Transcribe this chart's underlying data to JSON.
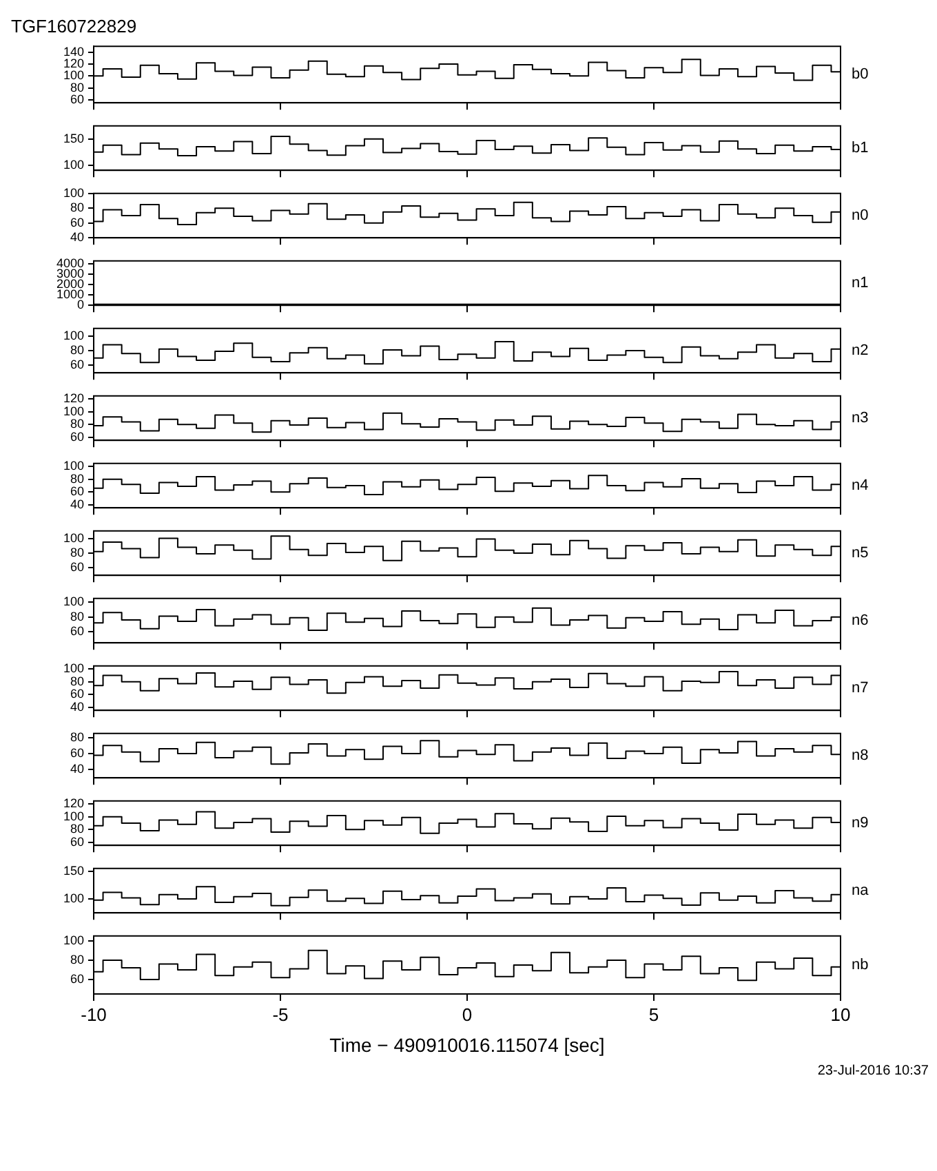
{
  "chart_data": [
    {
      "type": "step",
      "title": "TGF160722829",
      "xlim": [
        -10,
        10
      ],
      "xticks": [
        -10,
        -5,
        0,
        5,
        10
      ],
      "ylim": [
        55,
        150
      ],
      "yticks": [
        60,
        80,
        100,
        120,
        140
      ],
      "tick_labels": "y",
      "x": [
        -10,
        -9.5,
        -9,
        -8.5,
        -8,
        -7.5,
        -7,
        -6.5,
        -6,
        -5.5,
        -5,
        -4.5,
        -4,
        -3.5,
        -3,
        -2.5,
        -2,
        -1.5,
        -1,
        -0.5,
        0,
        0.5,
        1,
        1.5,
        2,
        2.5,
        3,
        3.5,
        4,
        4.5,
        5,
        5.5,
        6,
        6.5,
        7,
        7.5,
        8,
        8.5,
        9,
        9.5,
        10
      ],
      "series": [
        {
          "name": "b0",
          "color": "#000000",
          "values": [
            100,
            112,
            98,
            118,
            104,
            95,
            122,
            108,
            101,
            115,
            97,
            110,
            125,
            103,
            99,
            117,
            106,
            94,
            113,
            120,
            102,
            108,
            96,
            119,
            111,
            104,
            100,
            123,
            109,
            97,
            114,
            106,
            128,
            101,
            112,
            99,
            116,
            105,
            93,
            118,
            107
          ]
        }
      ]
    },
    {
      "type": "step",
      "xlim": [
        -10,
        10
      ],
      "xticks": [
        -10,
        -5,
        0,
        5,
        10
      ],
      "ylim": [
        90,
        175
      ],
      "yticks": [
        100,
        150
      ],
      "tick_labels": "y",
      "x": [
        -10,
        -9.5,
        -9,
        -8.5,
        -8,
        -7.5,
        -7,
        -6.5,
        -6,
        -5.5,
        -5,
        -4.5,
        -4,
        -3.5,
        -3,
        -2.5,
        -2,
        -1.5,
        -1,
        -0.5,
        0,
        0.5,
        1,
        1.5,
        2,
        2.5,
        3,
        3.5,
        4,
        4.5,
        5,
        5.5,
        6,
        6.5,
        7,
        7.5,
        8,
        8.5,
        9,
        9.5,
        10
      ],
      "series": [
        {
          "name": "b1",
          "color": "#000000",
          "values": [
            125,
            138,
            120,
            142,
            131,
            118,
            135,
            127,
            145,
            122,
            155,
            140,
            128,
            119,
            137,
            150,
            124,
            132,
            141,
            126,
            121,
            147,
            130,
            136,
            123,
            139,
            128,
            152,
            134,
            120,
            143,
            129,
            137,
            125,
            146,
            131,
            122,
            138,
            127,
            135,
            130
          ]
        }
      ]
    },
    {
      "type": "step",
      "xlim": [
        -10,
        10
      ],
      "xticks": [
        -10,
        -5,
        0,
        5,
        10
      ],
      "ylim": [
        40,
        100
      ],
      "yticks": [
        40,
        60,
        80,
        100
      ],
      "tick_labels": "y",
      "x": [
        -10,
        -9.5,
        -9,
        -8.5,
        -8,
        -7.5,
        -7,
        -6.5,
        -6,
        -5.5,
        -5,
        -4.5,
        -4,
        -3.5,
        -3,
        -2.5,
        -2,
        -1.5,
        -1,
        -0.5,
        0,
        0.5,
        1,
        1.5,
        2,
        2.5,
        3,
        3.5,
        4,
        4.5,
        5,
        5.5,
        6,
        6.5,
        7,
        7.5,
        8,
        8.5,
        9,
        9.5,
        10
      ],
      "series": [
        {
          "name": "n0",
          "color": "#000000",
          "values": [
            62,
            78,
            70,
            85,
            66,
            58,
            74,
            80,
            69,
            63,
            77,
            72,
            86,
            65,
            71,
            60,
            75,
            83,
            68,
            73,
            64,
            79,
            70,
            88,
            67,
            62,
            76,
            71,
            82,
            66,
            74,
            69,
            78,
            63,
            85,
            72,
            67,
            80,
            70,
            61,
            75
          ]
        }
      ]
    },
    {
      "type": "step",
      "xlim": [
        -10,
        10
      ],
      "xticks": [
        -10,
        -5,
        0,
        5,
        10
      ],
      "ylim": [
        0,
        4300
      ],
      "yticks": [
        0,
        1000,
        2000,
        3000,
        4000
      ],
      "tick_labels": "y",
      "x": [
        -10,
        -9.5,
        -9,
        -8.5,
        -8,
        -7.5,
        -7,
        -6.5,
        -6,
        -5.5,
        -5,
        -4.5,
        -4,
        -3.5,
        -3,
        -2.5,
        -2,
        -1.5,
        -1,
        -0.5,
        0,
        0.5,
        1,
        1.5,
        2,
        2.5,
        3,
        3.5,
        4,
        4.5,
        5,
        5.5,
        6,
        6.5,
        7,
        7.5,
        8,
        8.5,
        9,
        9.5,
        10
      ],
      "series": [
        {
          "name": "n1",
          "color": "#000000",
          "values": [
            100,
            100,
            100,
            100,
            100,
            100,
            100,
            100,
            100,
            100,
            100,
            100,
            100,
            100,
            100,
            100,
            100,
            100,
            100,
            100,
            100,
            100,
            100,
            100,
            100,
            100,
            100,
            100,
            100,
            100,
            100,
            100,
            100,
            100,
            100,
            100,
            100,
            100,
            100,
            100,
            100
          ]
        }
      ]
    },
    {
      "type": "step",
      "xlim": [
        -10,
        10
      ],
      "xticks": [
        -10,
        -5,
        0,
        5,
        10
      ],
      "ylim": [
        50,
        110
      ],
      "yticks": [
        60,
        80,
        100
      ],
      "tick_labels": "y",
      "x": [
        -10,
        -9.5,
        -9,
        -8.5,
        -8,
        -7.5,
        -7,
        -6.5,
        -6,
        -5.5,
        -5,
        -4.5,
        -4,
        -3.5,
        -3,
        -2.5,
        -2,
        -1.5,
        -1,
        -0.5,
        0,
        0.5,
        1,
        1.5,
        2,
        2.5,
        3,
        3.5,
        4,
        4.5,
        5,
        5.5,
        6,
        6.5,
        7,
        7.5,
        8,
        8.5,
        9,
        9.5,
        10
      ],
      "series": [
        {
          "name": "n2",
          "color": "#000000",
          "values": [
            70,
            88,
            76,
            64,
            82,
            72,
            67,
            79,
            90,
            71,
            65,
            77,
            84,
            69,
            74,
            62,
            81,
            73,
            86,
            68,
            75,
            70,
            92,
            66,
            78,
            72,
            83,
            67,
            74,
            80,
            71,
            64,
            85,
            73,
            69,
            78,
            88,
            70,
            76,
            65,
            82
          ]
        }
      ]
    },
    {
      "type": "step",
      "xlim": [
        -10,
        10
      ],
      "xticks": [
        -10,
        -5,
        0,
        5,
        10
      ],
      "ylim": [
        55,
        125
      ],
      "yticks": [
        60,
        80,
        100,
        120
      ],
      "tick_labels": "y",
      "x": [
        -10,
        -9.5,
        -9,
        -8.5,
        -8,
        -7.5,
        -7,
        -6.5,
        -6,
        -5.5,
        -5,
        -4.5,
        -4,
        -3.5,
        -3,
        -2.5,
        -2,
        -1.5,
        -1,
        -0.5,
        0,
        0.5,
        1,
        1.5,
        2,
        2.5,
        3,
        3.5,
        4,
        4.5,
        5,
        5.5,
        6,
        6.5,
        7,
        7.5,
        8,
        8.5,
        9,
        9.5,
        10
      ],
      "series": [
        {
          "name": "n3",
          "color": "#000000",
          "values": [
            78,
            92,
            84,
            70,
            88,
            80,
            74,
            95,
            82,
            68,
            86,
            79,
            90,
            75,
            83,
            72,
            98,
            81,
            76,
            89,
            84,
            71,
            87,
            79,
            93,
            73,
            85,
            80,
            77,
            91,
            82,
            69,
            88,
            84,
            74,
            96,
            80,
            78,
            86,
            72,
            84
          ]
        }
      ]
    },
    {
      "type": "step",
      "xlim": [
        -10,
        10
      ],
      "xticks": [
        -10,
        -5,
        0,
        5,
        10
      ],
      "ylim": [
        35,
        105
      ],
      "yticks": [
        40,
        60,
        80,
        100
      ],
      "tick_labels": "y",
      "x": [
        -10,
        -9.5,
        -9,
        -8.5,
        -8,
        -7.5,
        -7,
        -6.5,
        -6,
        -5.5,
        -5,
        -4.5,
        -4,
        -3.5,
        -3,
        -2.5,
        -2,
        -1.5,
        -1,
        -0.5,
        0,
        0.5,
        1,
        1.5,
        2,
        2.5,
        3,
        3.5,
        4,
        4.5,
        5,
        5.5,
        6,
        6.5,
        7,
        7.5,
        8,
        8.5,
        9,
        9.5,
        10
      ],
      "series": [
        {
          "name": "n4",
          "color": "#000000",
          "values": [
            66,
            80,
            72,
            58,
            75,
            69,
            84,
            63,
            71,
            77,
            60,
            73,
            82,
            67,
            70,
            56,
            76,
            68,
            79,
            64,
            72,
            83,
            61,
            74,
            69,
            78,
            65,
            86,
            70,
            62,
            75,
            68,
            81,
            66,
            73,
            59,
            77,
            70,
            84,
            63,
            72
          ]
        }
      ]
    },
    {
      "type": "step",
      "xlim": [
        -10,
        10
      ],
      "xticks": [
        -10,
        -5,
        0,
        5,
        10
      ],
      "ylim": [
        50,
        110
      ],
      "yticks": [
        60,
        80,
        100
      ],
      "tick_labels": "y",
      "x": [
        -10,
        -9.5,
        -9,
        -8.5,
        -8,
        -7.5,
        -7,
        -6.5,
        -6,
        -5.5,
        -5,
        -4.5,
        -4,
        -3.5,
        -3,
        -2.5,
        -2,
        -1.5,
        -1,
        -0.5,
        0,
        0.5,
        1,
        1.5,
        2,
        2.5,
        3,
        3.5,
        4,
        4.5,
        5,
        5.5,
        6,
        6.5,
        7,
        7.5,
        8,
        8.5,
        9,
        9.5,
        10
      ],
      "series": [
        {
          "name": "n5",
          "color": "#000000",
          "values": [
            82,
            95,
            86,
            74,
            100,
            88,
            79,
            91,
            84,
            72,
            103,
            85,
            77,
            93,
            81,
            89,
            70,
            96,
            83,
            87,
            75,
            99,
            84,
            80,
            92,
            78,
            97,
            86,
            73,
            90,
            84,
            94,
            79,
            88,
            82,
            98,
            76,
            91,
            85,
            77,
            89
          ]
        }
      ]
    },
    {
      "type": "step",
      "xlim": [
        -10,
        10
      ],
      "xticks": [
        -10,
        -5,
        0,
        5,
        10
      ],
      "ylim": [
        45,
        105
      ],
      "yticks": [
        60,
        80,
        100
      ],
      "tick_labels": "y",
      "x": [
        -10,
        -9.5,
        -9,
        -8.5,
        -8,
        -7.5,
        -7,
        -6.5,
        -6,
        -5.5,
        -5,
        -4.5,
        -4,
        -3.5,
        -3,
        -2.5,
        -2,
        -1.5,
        -1,
        -0.5,
        0,
        0.5,
        1,
        1.5,
        2,
        2.5,
        3,
        3.5,
        4,
        4.5,
        5,
        5.5,
        6,
        6.5,
        7,
        7.5,
        8,
        8.5,
        9,
        9.5,
        10
      ],
      "series": [
        {
          "name": "n6",
          "color": "#000000",
          "values": [
            72,
            86,
            76,
            64,
            81,
            74,
            90,
            68,
            77,
            83,
            70,
            79,
            62,
            85,
            73,
            78,
            67,
            88,
            75,
            71,
            84,
            66,
            80,
            73,
            92,
            69,
            76,
            82,
            65,
            79,
            74,
            87,
            70,
            77,
            63,
            83,
            72,
            89,
            68,
            75,
            80
          ]
        }
      ]
    },
    {
      "type": "step",
      "xlim": [
        -10,
        10
      ],
      "xticks": [
        -10,
        -5,
        0,
        5,
        10
      ],
      "ylim": [
        35,
        105
      ],
      "yticks": [
        40,
        60,
        80,
        100
      ],
      "tick_labels": "y",
      "x": [
        -10,
        -9.5,
        -9,
        -8.5,
        -8,
        -7.5,
        -7,
        -6.5,
        -6,
        -5.5,
        -5,
        -4.5,
        -4,
        -3.5,
        -3,
        -2.5,
        -2,
        -1.5,
        -1,
        -0.5,
        0,
        0.5,
        1,
        1.5,
        2,
        2.5,
        3,
        3.5,
        4,
        4.5,
        5,
        5.5,
        6,
        6.5,
        7,
        7.5,
        8,
        8.5,
        9,
        9.5,
        10
      ],
      "series": [
        {
          "name": "n7",
          "color": "#000000",
          "values": [
            74,
            90,
            80,
            66,
            85,
            77,
            94,
            72,
            81,
            68,
            87,
            76,
            83,
            62,
            79,
            88,
            73,
            82,
            70,
            91,
            78,
            75,
            86,
            69,
            80,
            84,
            71,
            93,
            77,
            73,
            88,
            66,
            81,
            79,
            96,
            74,
            83,
            70,
            87,
            76,
            90
          ]
        }
      ]
    },
    {
      "type": "step",
      "xlim": [
        -10,
        10
      ],
      "xticks": [
        -10,
        -5,
        0,
        5,
        10
      ],
      "ylim": [
        30,
        85
      ],
      "yticks": [
        40,
        60,
        80
      ],
      "tick_labels": "y",
      "x": [
        -10,
        -9.5,
        -9,
        -8.5,
        -8,
        -7.5,
        -7,
        -6.5,
        -6,
        -5.5,
        -5,
        -4.5,
        -4,
        -3.5,
        -3,
        -2.5,
        -2,
        -1.5,
        -1,
        -0.5,
        0,
        0.5,
        1,
        1.5,
        2,
        2.5,
        3,
        3.5,
        4,
        4.5,
        5,
        5.5,
        6,
        6.5,
        7,
        7.5,
        8,
        8.5,
        9,
        9.5,
        10
      ],
      "series": [
        {
          "name": "n8",
          "color": "#000000",
          "values": [
            58,
            70,
            62,
            50,
            66,
            60,
            74,
            55,
            63,
            68,
            47,
            61,
            72,
            57,
            65,
            53,
            69,
            60,
            76,
            56,
            64,
            59,
            71,
            51,
            62,
            67,
            58,
            73,
            54,
            63,
            60,
            68,
            48,
            65,
            61,
            75,
            57,
            66,
            62,
            70,
            59
          ]
        }
      ]
    },
    {
      "type": "step",
      "xlim": [
        -10,
        10
      ],
      "xticks": [
        -10,
        -5,
        0,
        5,
        10
      ],
      "ylim": [
        55,
        125
      ],
      "yticks": [
        60,
        80,
        100,
        120
      ],
      "tick_labels": "y",
      "x": [
        -10,
        -9.5,
        -9,
        -8.5,
        -8,
        -7.5,
        -7,
        -6.5,
        -6,
        -5.5,
        -5,
        -4.5,
        -4,
        -3.5,
        -3,
        -2.5,
        -2,
        -1.5,
        -1,
        -0.5,
        0,
        0.5,
        1,
        1.5,
        2,
        2.5,
        3,
        3.5,
        4,
        4.5,
        5,
        5.5,
        6,
        6.5,
        7,
        7.5,
        8,
        8.5,
        9,
        9.5,
        10
      ],
      "series": [
        {
          "name": "n9",
          "color": "#000000",
          "values": [
            86,
            100,
            90,
            78,
            95,
            88,
            108,
            82,
            91,
            97,
            76,
            93,
            85,
            102,
            80,
            94,
            87,
            99,
            74,
            90,
            96,
            84,
            105,
            89,
            81,
            98,
            92,
            77,
            101,
            86,
            94,
            83,
            97,
            90,
            79,
            104,
            88,
            95,
            82,
            99,
            91
          ]
        }
      ]
    },
    {
      "type": "step",
      "xlim": [
        -10,
        10
      ],
      "xticks": [
        -10,
        -5,
        0,
        5,
        10
      ],
      "ylim": [
        75,
        155
      ],
      "yticks": [
        100,
        150
      ],
      "tick_labels": "y",
      "x": [
        -10,
        -9.5,
        -9,
        -8.5,
        -8,
        -7.5,
        -7,
        -6.5,
        -6,
        -5.5,
        -5,
        -4.5,
        -4,
        -3.5,
        -3,
        -2.5,
        -2,
        -1.5,
        -1,
        -0.5,
        0,
        0.5,
        1,
        1.5,
        2,
        2.5,
        3,
        3.5,
        4,
        4.5,
        5,
        5.5,
        6,
        6.5,
        7,
        7.5,
        8,
        8.5,
        9,
        9.5,
        10
      ],
      "series": [
        {
          "name": "na",
          "color": "#000000",
          "values": [
            98,
            112,
            102,
            90,
            108,
            100,
            122,
            94,
            104,
            110,
            88,
            103,
            116,
            96,
            101,
            92,
            114,
            99,
            106,
            93,
            105,
            118,
            97,
            102,
            109,
            91,
            104,
            100,
            120,
            95,
            107,
            101,
            89,
            111,
            98,
            105,
            93,
            115,
            102,
            96,
            108
          ]
        }
      ]
    },
    {
      "type": "step",
      "xlim": [
        -10,
        10
      ],
      "xticks": [
        -10,
        -5,
        0,
        5,
        10
      ],
      "ylim": [
        45,
        105
      ],
      "yticks": [
        60,
        80,
        100
      ],
      "xlabel": "Time − 490910016.115074 [sec]",
      "annotations": [
        "23-Jul-2016 10:37"
      ],
      "x": [
        -10,
        -9.5,
        -9,
        -8.5,
        -8,
        -7.5,
        -7,
        -6.5,
        -6,
        -5.5,
        -5,
        -4.5,
        -4,
        -3.5,
        -3,
        -2.5,
        -2,
        -1.5,
        -1,
        -0.5,
        0,
        0.5,
        1,
        1.5,
        2,
        2.5,
        3,
        3.5,
        4,
        4.5,
        5,
        5.5,
        6,
        6.5,
        7,
        7.5,
        8,
        8.5,
        9,
        9.5,
        10
      ],
      "series": [
        {
          "name": "nb",
          "color": "#000000",
          "values": [
            68,
            80,
            72,
            60,
            76,
            70,
            86,
            64,
            73,
            78,
            62,
            71,
            90,
            66,
            74,
            61,
            79,
            70,
            83,
            65,
            72,
            77,
            63,
            75,
            69,
            88,
            67,
            73,
            80,
            62,
            76,
            70,
            84,
            66,
            72,
            59,
            78,
            71,
            82,
            64,
            73
          ]
        }
      ]
    }
  ]
}
